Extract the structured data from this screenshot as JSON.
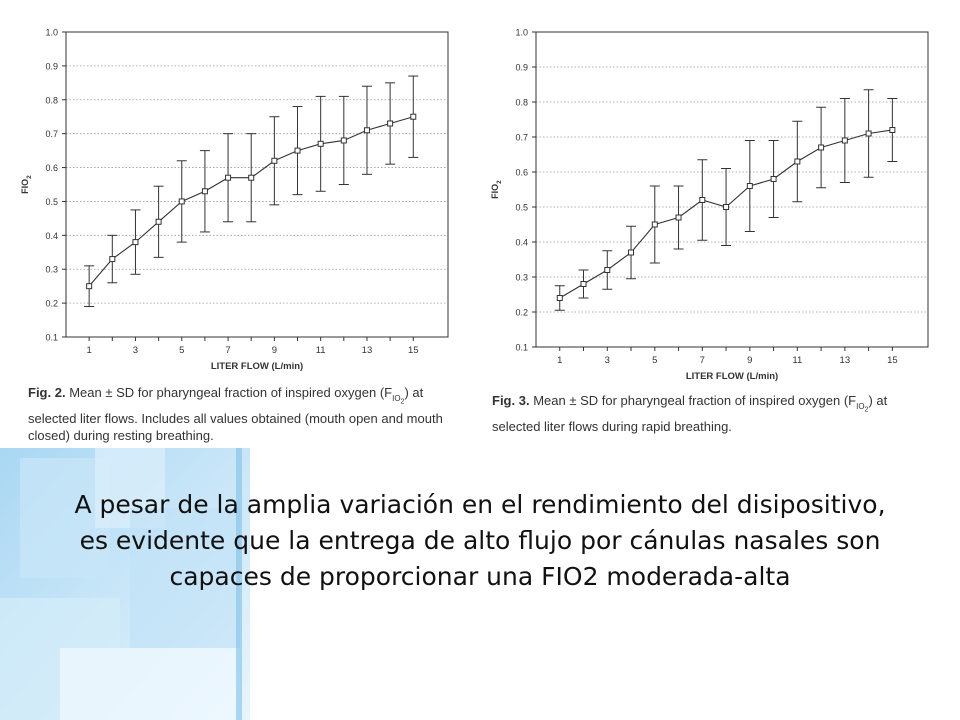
{
  "chart_data": [
    {
      "type": "line",
      "xlabel": "LITER FLOW (L/min)",
      "ylabel": "FIO",
      "ylabel_sub": "2",
      "xlim": [
        0,
        16.5
      ],
      "ylim": [
        0.1,
        1.0
      ],
      "xticks": [
        1,
        3,
        5,
        7,
        9,
        11,
        13,
        15
      ],
      "yticks": [
        0.1,
        0.2,
        0.3,
        0.4,
        0.5,
        0.6,
        0.7,
        0.8,
        0.9,
        1.0
      ],
      "ytick_labels": [
        "0.1",
        "0.2",
        "0.3",
        "0.4",
        "0.5",
        "0.6",
        "0.7",
        "0.8",
        "0.9",
        "1.0"
      ],
      "grid": "horizontal dotted",
      "x": [
        1,
        2,
        3,
        4,
        5,
        6,
        7,
        8,
        9,
        10,
        11,
        12,
        13,
        14,
        15
      ],
      "series": [
        {
          "mean": [
            0.25,
            0.33,
            0.38,
            0.44,
            0.5,
            0.53,
            0.57,
            0.57,
            0.62,
            0.65,
            0.67,
            0.68,
            0.71,
            0.73,
            0.75
          ],
          "sd": [
            0.06,
            0.07,
            0.095,
            0.105,
            0.12,
            0.12,
            0.13,
            0.13,
            0.13,
            0.13,
            0.14,
            0.13,
            0.13,
            0.12,
            0.12
          ]
        }
      ]
    },
    {
      "type": "line",
      "xlabel": "LITER FLOW (L/min)",
      "ylabel": "FIO",
      "ylabel_sub": "2",
      "xlim": [
        0,
        16.5
      ],
      "ylim": [
        0.1,
        1.0
      ],
      "xticks": [
        1,
        3,
        5,
        7,
        9,
        11,
        13,
        15
      ],
      "yticks": [
        0.1,
        0.2,
        0.3,
        0.4,
        0.5,
        0.6,
        0.7,
        0.8,
        0.9,
        1.0
      ],
      "ytick_labels": [
        "0.1",
        "0.2",
        "0.3",
        "0.4",
        "0.5",
        "0.6",
        "0.7",
        "0.8",
        "0.9",
        "1.0"
      ],
      "grid": "horizontal dotted",
      "x": [
        1,
        2,
        3,
        4,
        5,
        6,
        7,
        8,
        9,
        10,
        11,
        12,
        13,
        14,
        15
      ],
      "series": [
        {
          "mean": [
            0.24,
            0.28,
            0.32,
            0.37,
            0.45,
            0.47,
            0.52,
            0.5,
            0.56,
            0.58,
            0.63,
            0.67,
            0.69,
            0.71,
            0.72
          ],
          "sd": [
            0.035,
            0.04,
            0.055,
            0.075,
            0.11,
            0.09,
            0.115,
            0.11,
            0.13,
            0.11,
            0.115,
            0.115,
            0.12,
            0.125,
            0.09
          ]
        }
      ]
    }
  ],
  "captions": [
    {
      "label": "Fig. 2.",
      "text": "Mean ± SD for pharyngeal fraction of inspired oxygen (F",
      "sub": "IO",
      "sub2": "2",
      "text2": ") at selected liter flows. Includes all values obtained (mouth open and mouth closed) during resting breathing."
    },
    {
      "label": "Fig. 3.",
      "text": "Mean ± SD for pharyngeal fraction of inspired oxygen (F",
      "sub": "IO",
      "sub2": "2",
      "text2": ") at selected liter flows during rapid breathing."
    }
  ],
  "main_text": "A pesar de la amplia variación en el rendimiento del disipositivo, es evidente que la entrega de alto flujo por cánulas nasales son capaces de proporcionar una  FIO2 moderada-alta",
  "colors": {
    "background": "#ffffff",
    "plot_line": "#333333",
    "decor_blue": "#9fd0ee"
  }
}
